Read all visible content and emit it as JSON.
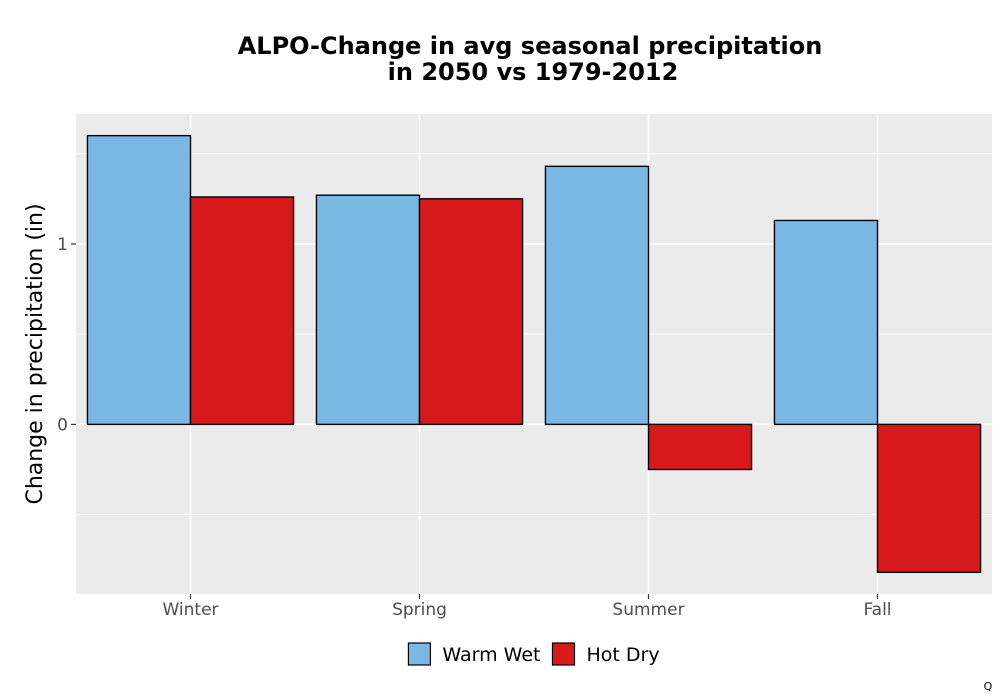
{
  "chart_data": {
    "type": "bar",
    "title_lines": [
      "ALPO-Change in avg seasonal precipitation",
      "in 2050 vs 1979-2012"
    ],
    "xlabel": "",
    "ylabel": "Change in precipitation (in)",
    "categories": [
      "Winter",
      "Spring",
      "Summer",
      "Fall"
    ],
    "series": [
      {
        "name": "Warm Wet",
        "color": "#79b8e2",
        "values": [
          1.6,
          1.27,
          1.43,
          1.13
        ]
      },
      {
        "name": "Hot Dry",
        "color": "#d7191c",
        "values": [
          1.26,
          1.25,
          -0.25,
          -0.82
        ]
      }
    ],
    "ylim": [
      -0.94,
      1.72
    ],
    "y_ticks": [
      0,
      1
    ],
    "y_tick_labels": [
      "0",
      "1"
    ],
    "y_minor_gridlines": [
      -0.5,
      0.5,
      1.5
    ],
    "grid": true,
    "panel_background": "#ebebeb",
    "bar_outline_color": "#000000",
    "legend_position": "bottom"
  },
  "corner_mark": "Q"
}
